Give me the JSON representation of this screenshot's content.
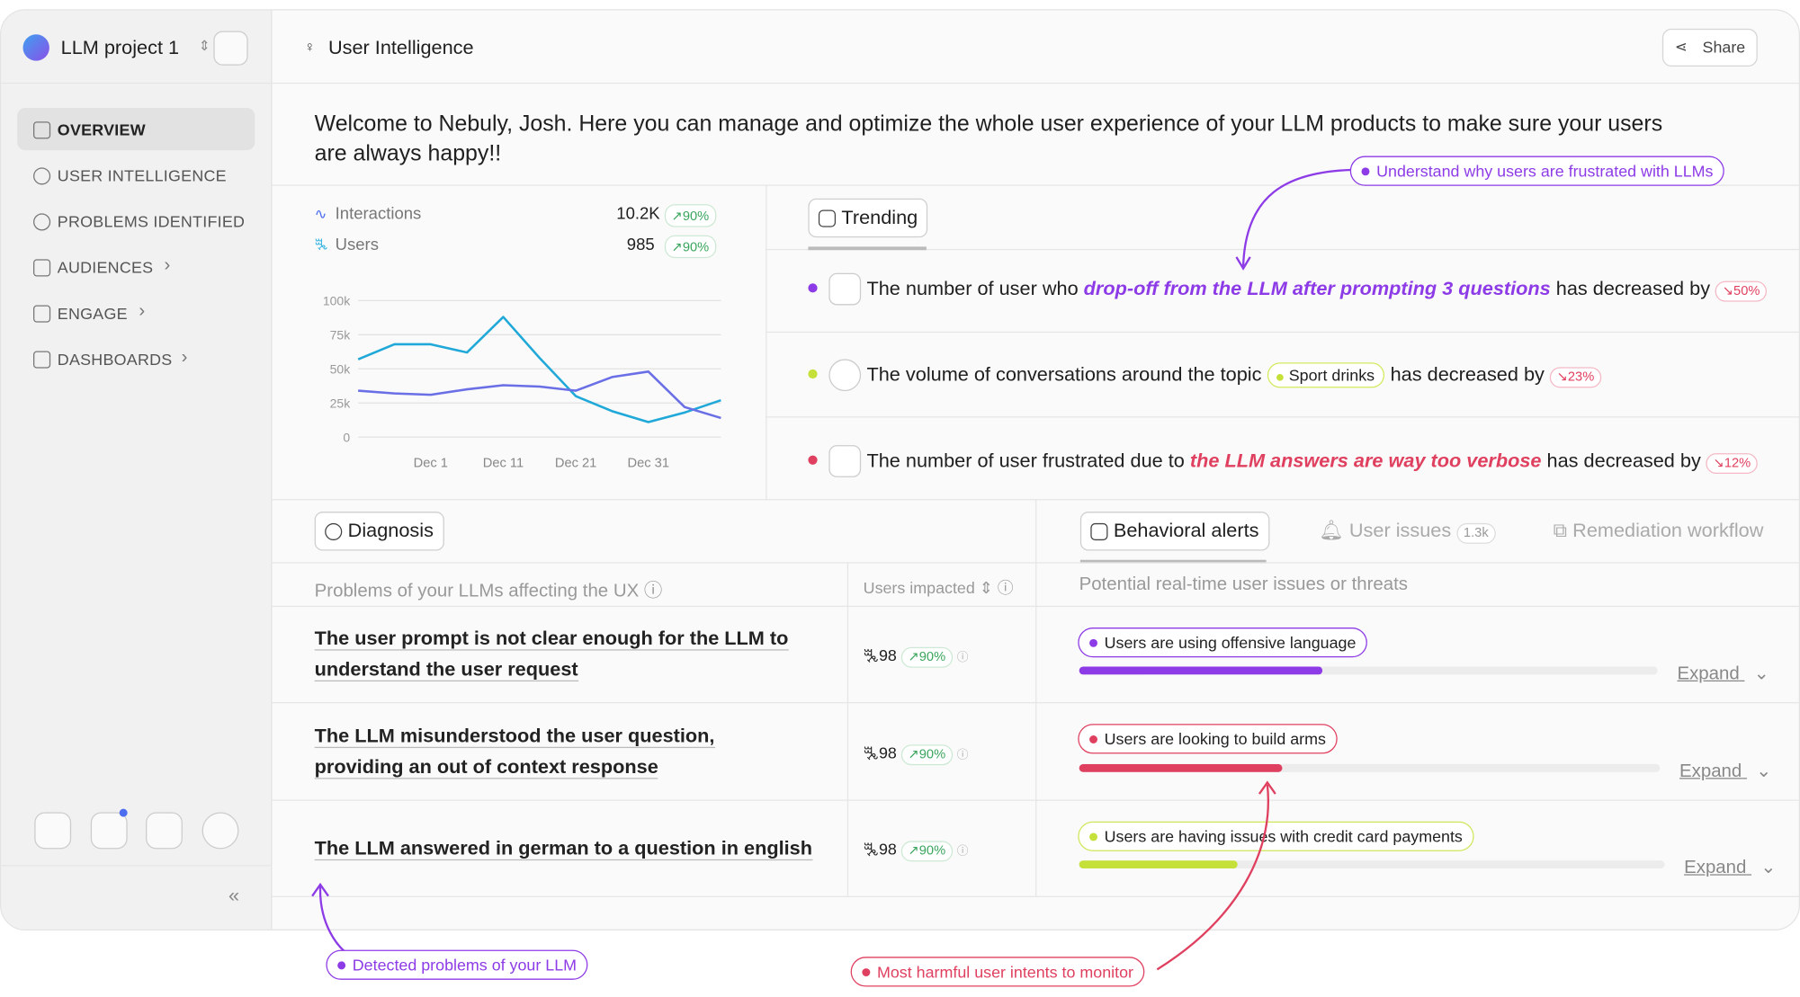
{
  "sidebar": {
    "project": "LLM project 1",
    "nav": [
      "OVERVIEW",
      "USER INTELLIGENCE",
      "PROBLEMS IDENTIFIED",
      "AUDIENCES",
      "ENGAGE",
      "DASHBOARDS"
    ]
  },
  "header": {
    "title": "User Intelligence",
    "share": "Share"
  },
  "welcome": "Welcome to Nebuly, Josh. Here you can manage and optimize the whole user experience of your LLM products to make sure your users are always happy!!",
  "metrics": [
    {
      "label": "Interactions",
      "value": "10.2K",
      "change": "90%"
    },
    {
      "label": "Users",
      "value": "985",
      "change": "90%"
    }
  ],
  "chart_data": {
    "type": "line",
    "categories": [
      null,
      null,
      "Dec 1",
      null,
      "Dec 11",
      null,
      "Dec 21",
      null,
      "Dec 31",
      null,
      null
    ],
    "series": [
      {
        "color": "#1fa8d8",
        "values": [
          57000,
          68000,
          68000,
          62000,
          88000,
          58000,
          30000,
          19000,
          11000,
          18000,
          27000
        ]
      },
      {
        "color": "#6a6fe6",
        "values": [
          34000,
          32000,
          31000,
          35000,
          38000,
          37000,
          34000,
          44000,
          48000,
          22000,
          14000
        ]
      }
    ],
    "ylim": [
      0,
      100000
    ],
    "yticks": [
      0,
      {
        "value": 25000,
        "label": "25k"
      },
      {
        "value": 50000,
        "label": "50k"
      },
      {
        "value": 75000,
        "label": "75k"
      },
      {
        "value": 100000,
        "label": "100k"
      }
    ],
    "grid": true
  },
  "trending": {
    "tab": "Trending",
    "items": [
      {
        "pre": "The number of user who",
        "highlight": "drop-off from the LLM after prompting 3 questions",
        "post": "has decreased by",
        "change": "50%"
      },
      {
        "pre": "The volume of conversations around the topic",
        "tag": "Sport drinks",
        "post": "has decreased by",
        "change": "23%"
      },
      {
        "pre": "The number of user frustrated due to",
        "highlight": "the LLM answers are way too verbose",
        "post": "has decreased by",
        "change": "12%"
      }
    ]
  },
  "diagnosis": {
    "tab": "Diagnosis",
    "column": "Problems of your LLMs affecting the UX",
    "users_column": "Users impacted",
    "rows": [
      {
        "problem": "The user prompt is not clear enough for the LLM to understand the user request",
        "users": "98",
        "change": "90%"
      },
      {
        "problem": "The LLM misunderstood the user question, providing an out of context response",
        "users": "98",
        "change": "90%"
      },
      {
        "problem": "The LLM answered in german to a question in english",
        "users": "98",
        "change": "90%"
      }
    ]
  },
  "alerts": {
    "tabs": [
      "Behavioral alerts",
      "User issues",
      "Remediation workflow"
    ],
    "issues_count": "1.3k",
    "column": "Potential real-time user issues or threats",
    "rows": [
      {
        "label": "Users are using offensive language",
        "progress": 42,
        "expand": "Expand"
      },
      {
        "label": "Users are looking to build arms",
        "progress": 35,
        "expand": "Expand"
      },
      {
        "label": "Users are having issues with credit card payments",
        "progress": 27,
        "expand": "Expand"
      }
    ]
  },
  "annotations": [
    "Understand why users are frustrated with LLMs",
    "Detected problems of your LLM",
    "Most harmful user intents to monitor"
  ]
}
